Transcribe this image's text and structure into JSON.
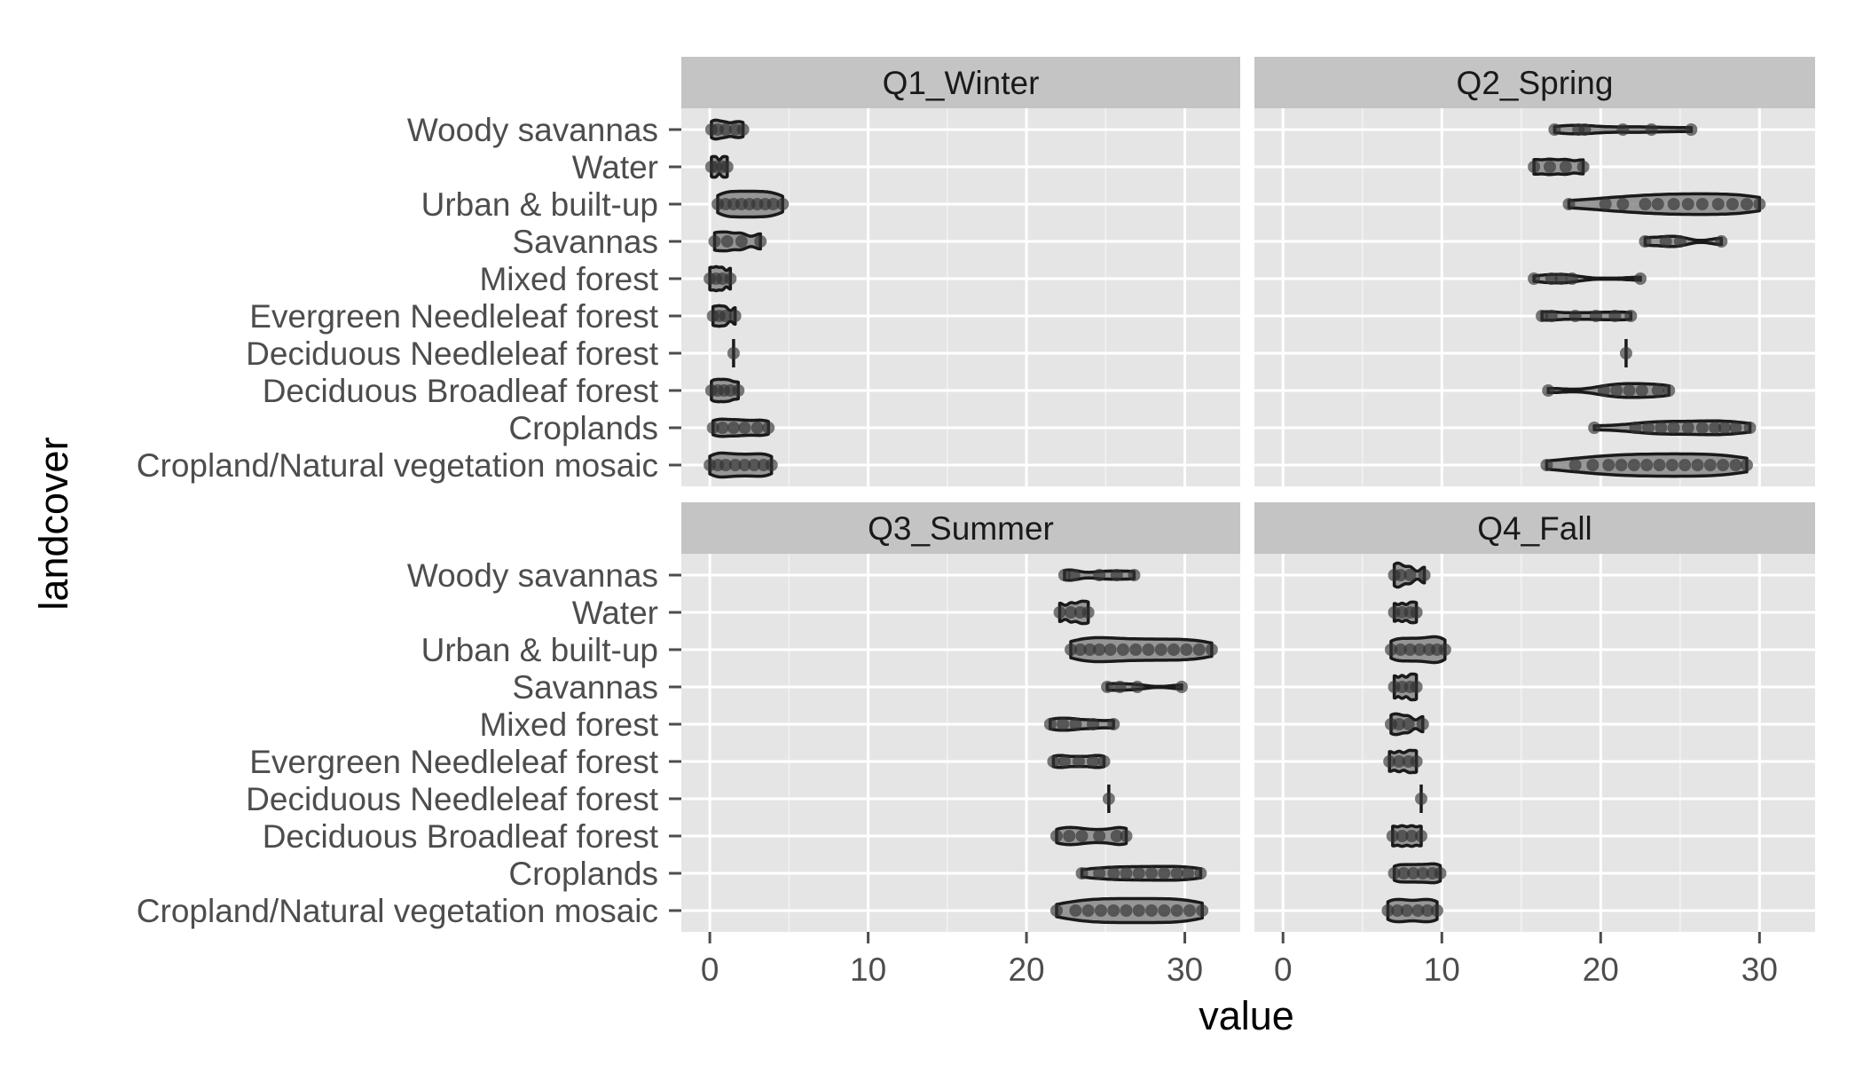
{
  "chart_data": {
    "type": "violin",
    "facets": [
      "Q1_Winter",
      "Q2_Spring",
      "Q3_Summer",
      "Q4_Fall"
    ],
    "categories": [
      "Woody savannas",
      "Water",
      "Urban & built-up",
      "Savannas",
      "Mixed forest",
      "Evergreen Needleleaf forest",
      "Deciduous Needleleaf forest",
      "Deciduous Broadleaf forest",
      "Croplands",
      "Cropland/Natural vegetation mosaic"
    ],
    "xlabel": "value",
    "ylabel": "landcover",
    "x_ticks": [
      0,
      10,
      20,
      30
    ],
    "x_tick_labels": [
      "0",
      "10",
      "20",
      "30"
    ],
    "xlim": [
      -1.8,
      33.5
    ],
    "grid": true,
    "colors": {
      "panel_bg": "#e5e5e5",
      "strip_bg": "#c4c4c4",
      "grid": "#ffffff",
      "violin_fill": "#888888",
      "outline": "#1a1a1a"
    },
    "series": [
      {
        "facet": "Q1_Winter",
        "groups": [
          {
            "category": "Woody savannas",
            "points": [
              0.1,
              0.5,
              1.0,
              1.6,
              2.1
            ],
            "width": 0.55
          },
          {
            "category": "Water",
            "points": [
              0.1,
              0.4,
              0.8,
              1.1
            ],
            "width": 0.6
          },
          {
            "category": "Urban & built-up",
            "points": [
              0.5,
              1.0,
              1.5,
              2.0,
              2.5,
              3.0,
              3.5,
              4.0,
              4.6
            ],
            "width": 0.75
          },
          {
            "category": "Savannas",
            "points": [
              0.3,
              1.1,
              2.0,
              3.2
            ],
            "width": 0.55
          },
          {
            "category": "Mixed forest",
            "points": [
              0.0,
              0.4,
              0.8,
              1.3
            ],
            "width": 0.7
          },
          {
            "category": "Evergreen Needleleaf forest",
            "points": [
              0.2,
              0.6,
              1.0,
              1.6
            ],
            "width": 0.6
          },
          {
            "category": "Deciduous Needleleaf forest",
            "points": [
              1.5
            ],
            "width": 0.1
          },
          {
            "category": "Deciduous Broadleaf forest",
            "points": [
              0.1,
              0.5,
              0.9,
              1.3,
              1.8
            ],
            "width": 0.65
          },
          {
            "category": "Croplands",
            "points": [
              0.2,
              0.8,
              1.5,
              2.2,
              3.0,
              3.7
            ],
            "width": 0.5
          },
          {
            "category": "Cropland/Natural vegetation mosaic",
            "points": [
              0.0,
              0.5,
              1.0,
              1.6,
              2.2,
              2.8,
              3.4,
              3.9
            ],
            "width": 0.7
          }
        ]
      },
      {
        "facet": "Q2_Spring",
        "groups": [
          {
            "category": "Woody savannas",
            "points": [
              17.1,
              18.6,
              19.0,
              21.4,
              23.2,
              25.7
            ],
            "width": 0.25
          },
          {
            "category": "Water",
            "points": [
              15.8,
              16.8,
              17.8,
              18.9
            ],
            "width": 0.45
          },
          {
            "category": "Urban & built-up",
            "points": [
              18.0,
              20.3,
              21.4,
              22.8,
              23.6,
              24.6,
              25.5,
              26.4,
              27.4,
              28.3,
              29.2,
              30.0
            ],
            "width": 0.6
          },
          {
            "category": "Savannas",
            "points": [
              22.8,
              24.1,
              25.0,
              27.6
            ],
            "width": 0.3
          },
          {
            "category": "Mixed forest",
            "points": [
              15.8,
              16.9,
              17.5,
              18.2,
              22.5
            ],
            "width": 0.25
          },
          {
            "category": "Evergreen Needleleaf forest",
            "points": [
              16.3,
              16.9,
              18.4,
              19.7,
              20.9,
              21.9
            ],
            "width": 0.25
          },
          {
            "category": "Deciduous Needleleaf forest",
            "points": [
              21.6
            ],
            "width": 0.1
          },
          {
            "category": "Deciduous Broadleaf forest",
            "points": [
              16.7,
              20.2,
              21.0,
              21.8,
              22.6,
              23.6,
              24.3
            ],
            "width": 0.4
          },
          {
            "category": "Croplands",
            "points": [
              19.6,
              22.2,
              23.0,
              23.8,
              24.6,
              25.5,
              26.4,
              27.2,
              27.8,
              28.5,
              29.4
            ],
            "width": 0.4
          },
          {
            "category": "Cropland/Natural vegetation mosaic",
            "points": [
              16.6,
              18.4,
              19.5,
              20.5,
              21.3,
              22.1,
              22.9,
              23.7,
              24.5,
              25.3,
              26.1,
              26.9,
              27.7,
              28.5,
              29.2
            ],
            "width": 0.65
          }
        ]
      },
      {
        "facet": "Q3_Summer",
        "groups": [
          {
            "category": "Woody savannas",
            "points": [
              22.4,
              23.0,
              24.6,
              25.7,
              26.8
            ],
            "width": 0.3
          },
          {
            "category": "Water",
            "points": [
              22.1,
              22.8,
              23.4,
              23.9
            ],
            "width": 0.65
          },
          {
            "category": "Urban & built-up",
            "points": [
              22.8,
              23.4,
              24.0,
              24.6,
              25.3,
              26.1,
              26.9,
              27.7,
              28.5,
              29.3,
              30.1,
              30.9,
              31.7
            ],
            "width": 0.7
          },
          {
            "category": "Savannas",
            "points": [
              25.1,
              25.9,
              27.0,
              29.8
            ],
            "width": 0.2
          },
          {
            "category": "Mixed forest",
            "points": [
              21.5,
              22.3,
              23.1,
              24.2,
              25.5
            ],
            "width": 0.35
          },
          {
            "category": "Evergreen Needleleaf forest",
            "points": [
              21.7,
              22.4,
              23.3,
              24.2,
              24.9
            ],
            "width": 0.35
          },
          {
            "category": "Deciduous Needleleaf forest",
            "points": [
              25.2
            ],
            "width": 0.1
          },
          {
            "category": "Deciduous Broadleaf forest",
            "points": [
              21.9,
              22.7,
              23.5,
              24.6,
              25.7,
              26.3
            ],
            "width": 0.5
          },
          {
            "category": "Croplands",
            "points": [
              23.5,
              24.6,
              25.5,
              26.3,
              27.1,
              27.9,
              28.7,
              29.5,
              30.2,
              31.0
            ],
            "width": 0.4
          },
          {
            "category": "Cropland/Natural vegetation mosaic",
            "points": [
              21.9,
              23.1,
              23.9,
              24.7,
              25.5,
              26.3,
              27.1,
              27.9,
              28.7,
              29.5,
              30.3,
              31.1
            ],
            "width": 0.7
          }
        ]
      },
      {
        "facet": "Q4_Fall",
        "groups": [
          {
            "category": "Woody savannas",
            "points": [
              7.0,
              7.4,
              8.0,
              8.9
            ],
            "width": 0.7
          },
          {
            "category": "Water",
            "points": [
              7.0,
              7.5,
              8.0,
              8.4
            ],
            "width": 0.6
          },
          {
            "category": "Urban & built-up",
            "points": [
              6.8,
              7.4,
              8.0,
              8.6,
              9.2,
              9.7,
              10.2
            ],
            "width": 0.75
          },
          {
            "category": "Savannas",
            "points": [
              7.0,
              7.5,
              8.0,
              8.4
            ],
            "width": 0.75
          },
          {
            "category": "Mixed forest",
            "points": [
              6.8,
              7.3,
              7.9,
              8.8
            ],
            "width": 0.6
          },
          {
            "category": "Evergreen Needleleaf forest",
            "points": [
              6.7,
              7.3,
              7.9,
              8.4
            ],
            "width": 0.65
          },
          {
            "category": "Deciduous Needleleaf forest",
            "points": [
              8.7
            ],
            "width": 0.1
          },
          {
            "category": "Deciduous Broadleaf forest",
            "points": [
              6.9,
              7.5,
              8.1,
              8.7
            ],
            "width": 0.6
          },
          {
            "category": "Croplands",
            "points": [
              7.0,
              7.6,
              8.2,
              8.8,
              9.4,
              9.9
            ],
            "width": 0.55
          },
          {
            "category": "Cropland/Natural vegetation mosaic",
            "points": [
              6.6,
              7.2,
              7.8,
              8.5,
              9.1,
              9.7
            ],
            "width": 0.65
          }
        ]
      }
    ]
  }
}
